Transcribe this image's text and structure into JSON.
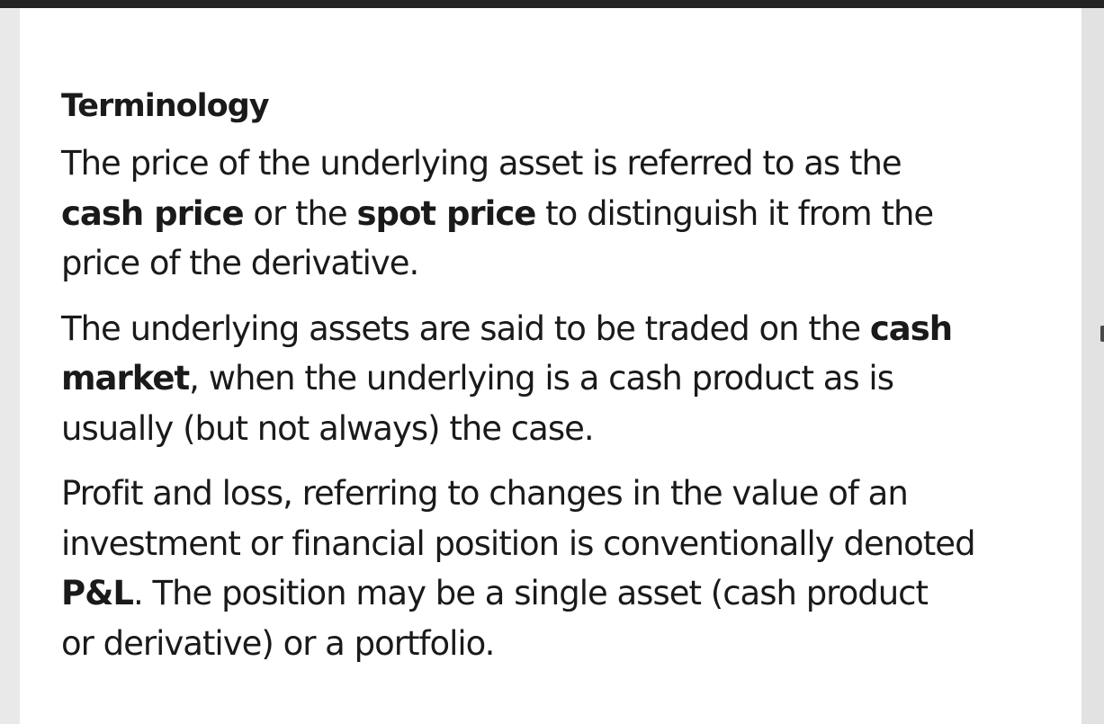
{
  "slide": {
    "title": "Terminology",
    "paragraph1": {
      "line1": "The price of the underlying asset is referred to as the",
      "term_cash_price": "cash price",
      "text_or_the": " or the ",
      "term_spot_price": "spot price",
      "text_after_spot": " to distinguish it from the",
      "line3": "price of the derivative."
    },
    "paragraph2": {
      "line1_before": "The underlying assets are said to be traded on the ",
      "term_cash": "cash",
      "term_market": "market",
      "line2_after": ", when the underlying is a cash product as is",
      "line3": "usually (but not always) the case."
    },
    "paragraph3": {
      "line1": "Profit and loss, referring to changes in the value of an",
      "line2": "investment or financial position is conventionally denoted",
      "term_pl": "P&L",
      "line3_after": ". The position may be a single asset (cash product",
      "line4": "or derivative) or a portfolio."
    }
  }
}
